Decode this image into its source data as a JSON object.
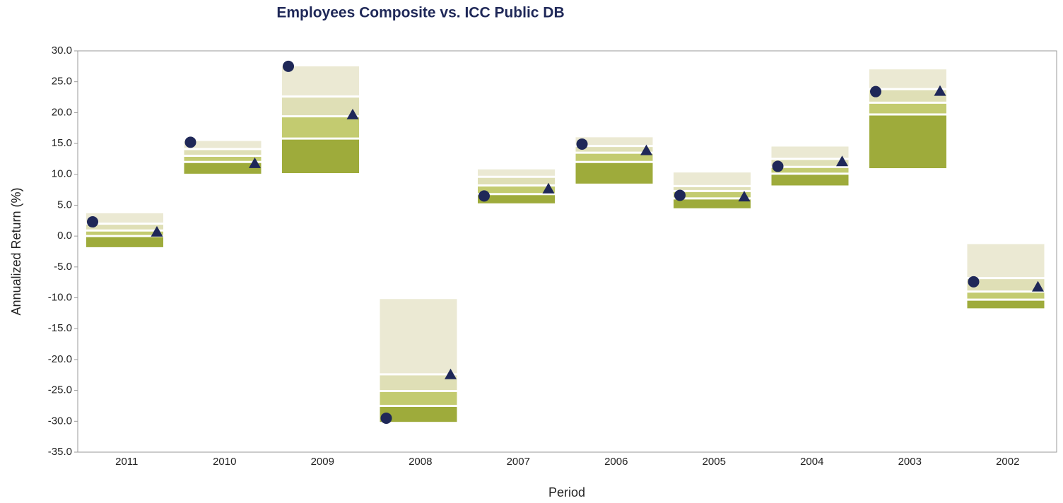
{
  "chart_data": {
    "type": "floating-range",
    "title": "Employees Composite vs. ICC Public DB",
    "x_label": "Period",
    "y_label": "Annualized Return (%)",
    "categories": [
      "2011",
      "2010",
      "2009",
      "2008",
      "2007",
      "2006",
      "2005",
      "2004",
      "2003",
      "2002"
    ],
    "ranges": [
      [
        3.7,
        2.0,
        0.9,
        0.0,
        -1.8
      ],
      [
        15.4,
        14.1,
        13.0,
        12.0,
        10.1
      ],
      [
        27.5,
        22.6,
        19.4,
        15.8,
        10.2
      ],
      [
        -10.2,
        -22.4,
        -25.1,
        -27.5,
        -30.1
      ],
      [
        10.8,
        9.6,
        8.2,
        6.8,
        5.3
      ],
      [
        16.0,
        14.6,
        13.5,
        12.0,
        8.5
      ],
      [
        10.3,
        8.1,
        7.3,
        6.1,
        4.5
      ],
      [
        14.5,
        12.5,
        11.2,
        10.1,
        8.2
      ],
      [
        27.0,
        23.8,
        21.6,
        19.7,
        11.0
      ],
      [
        -1.3,
        -6.8,
        -9.0,
        -10.3,
        -11.7
      ]
    ],
    "range_colors": [
      "#ebe9d3",
      "#dfdfb6",
      "#c3cb70",
      "#9eab3b"
    ],
    "circle_values": [
      2.3,
      15.2,
      27.5,
      -29.5,
      6.5,
      14.9,
      6.6,
      11.3,
      23.4,
      -7.4
    ],
    "triangle_values": [
      0.6,
      11.7,
      19.6,
      -22.5,
      7.6,
      13.8,
      6.3,
      12.0,
      23.4,
      -8.3
    ],
    "marker_color": "#1f2858",
    "ylim": [
      -35,
      30
    ],
    "yticks": [
      {
        "value": 30,
        "label": "30.0"
      },
      {
        "value": 25,
        "label": "25.0"
      },
      {
        "value": 20,
        "label": "20.0"
      },
      {
        "value": 15,
        "label": "15.0"
      },
      {
        "value": 10,
        "label": "10.0"
      },
      {
        "value": 5,
        "label": "5.0"
      },
      {
        "value": 0,
        "label": "0.0"
      },
      {
        "value": -5,
        "label": "-5.0"
      },
      {
        "value": -10,
        "label": "-10.0"
      },
      {
        "value": -15,
        "label": "-15.0"
      },
      {
        "value": -20,
        "label": "-20.0"
      },
      {
        "value": -25,
        "label": "-25.0"
      },
      {
        "value": -30,
        "label": "-30.0"
      },
      {
        "value": -35,
        "label": "-35.0"
      }
    ],
    "grid": false
  }
}
